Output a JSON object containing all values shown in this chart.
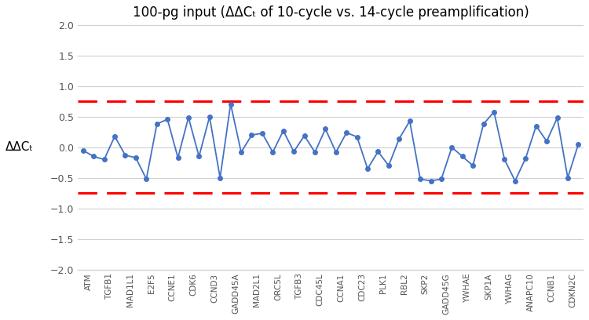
{
  "title": "100-pg input (ΔΔCₜ of 10-cycle vs. 14-cycle preamplification)",
  "ylabel": "ΔΔCₜ",
  "ylim": [
    -2,
    2
  ],
  "yticks": [
    -2,
    -1.5,
    -1,
    -0.5,
    0,
    0.5,
    1,
    1.5,
    2
  ],
  "hline_pos": 0.75,
  "hline_neg": -0.75,
  "line_color": "#4472c4",
  "marker_color": "#4472c4",
  "hline_color": "#ff0000",
  "categories": [
    "ATM",
    "TGFB1",
    "MAD1L1",
    "E2F5",
    "CCNE1",
    "CDK6",
    "CCND3",
    "GADD45A",
    "MAD2L1",
    "ORC5L",
    "TGFB3",
    "CDC45L",
    "CCNA1",
    "CDC23",
    "PLK1",
    "RBL2",
    "SKP2",
    "GADD45G",
    "YWHAE",
    "SKP1A",
    "YWHAG",
    "ANAPC10",
    "CCNB1",
    "CDKN2C"
  ],
  "values": [
    -0.05,
    -0.15,
    -0.2,
    0.18,
    -0.13,
    -0.17,
    -0.52,
    0.38,
    0.46,
    -0.17,
    0.49,
    -0.15,
    0.5,
    -0.5,
    0.71,
    -0.08,
    0.2,
    0.23,
    -0.08,
    0.27,
    -0.07,
    0.19,
    -0.08,
    0.3,
    -0.08,
    0.24,
    0.17,
    -0.35,
    -0.07,
    -0.3,
    0.14,
    0.43,
    -0.52,
    -0.55,
    -0.52,
    0.0,
    -0.15,
    -0.3,
    0.38,
    0.58,
    -0.2,
    -0.55,
    -0.18,
    0.35,
    0.1,
    0.48,
    -0.5,
    0.05
  ]
}
